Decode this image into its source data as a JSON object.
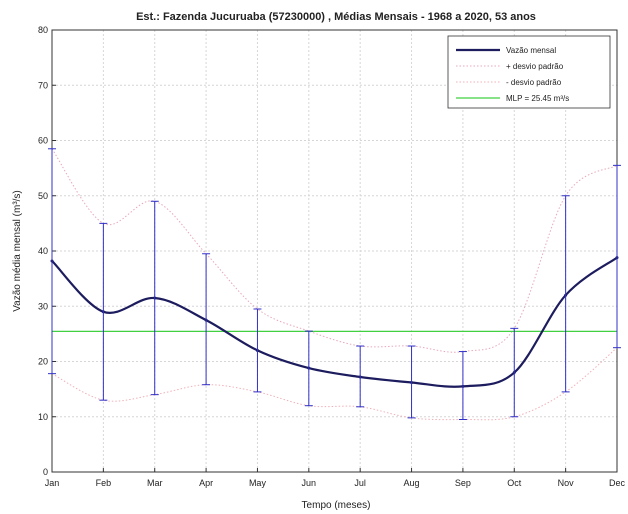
{
  "chart_data": {
    "type": "line",
    "title": "Est.: Fazenda Jucuruaba (57230000) , Médias Mensais - 1968 a 2020, 53 anos",
    "xlabel": "Tempo (meses)",
    "ylabel": "Vazão média mensal (m³/s)",
    "categories": [
      "Jan",
      "Feb",
      "Mar",
      "Apr",
      "May",
      "Jun",
      "Jul",
      "Aug",
      "Sep",
      "Oct",
      "Nov",
      "Dec"
    ],
    "ylim": [
      0,
      80
    ],
    "yticks": [
      0,
      10,
      20,
      30,
      40,
      50,
      60,
      70,
      80
    ],
    "grid": true,
    "legend_position": "top-right",
    "mean_color": "#1c1c5e",
    "upper_color": "#e8a8b8",
    "lower_color": "#f0b0b8",
    "errorbar_color": "#3030c8",
    "mlt_color": "#40d040",
    "series": [
      {
        "name": "Vazão mensal",
        "values": [
          38.2,
          29.0,
          31.5,
          27.5,
          22.0,
          18.8,
          17.2,
          16.2,
          15.5,
          18.0,
          32.0,
          38.8
        ]
      },
      {
        "name": "+ desvio padrão",
        "values": [
          58.5,
          45.0,
          49.0,
          39.5,
          29.5,
          25.5,
          22.8,
          22.8,
          21.8,
          26.0,
          50.0,
          55.5
        ]
      },
      {
        "name": "- desvio padrão",
        "values": [
          17.8,
          13.0,
          14.0,
          15.8,
          14.5,
          12.0,
          11.8,
          9.8,
          9.5,
          10.0,
          14.5,
          22.5
        ]
      }
    ],
    "mlt": {
      "name": "MLP = 25.45 m³/s",
      "value": 25.45
    }
  }
}
